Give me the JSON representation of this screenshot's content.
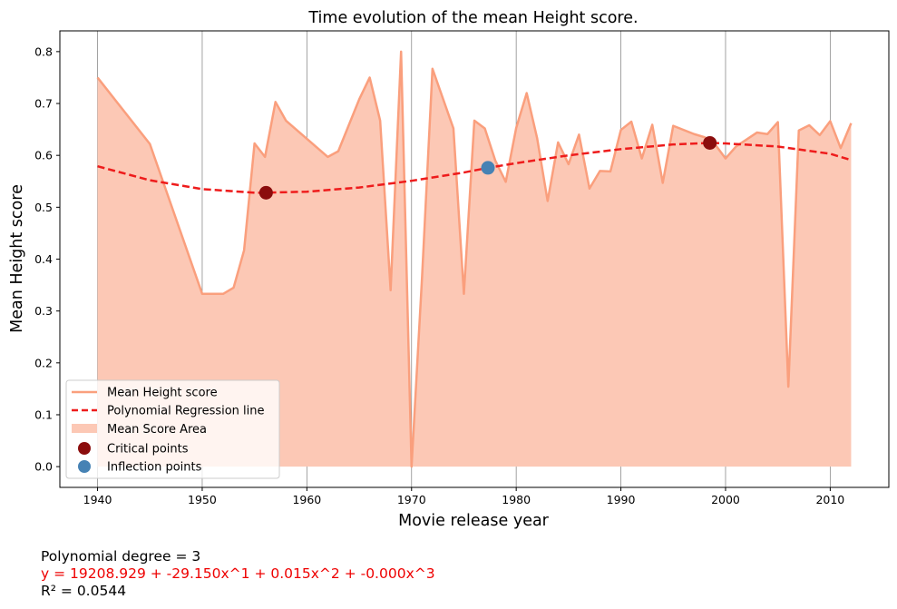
{
  "chart_data": {
    "type": "line",
    "title": "Time evolution of the mean Height score.",
    "xlabel": "Movie release year",
    "ylabel": "Mean Height score",
    "xlim": [
      1936.4,
      2015.6
    ],
    "ylim": [
      -0.04,
      0.84
    ],
    "xticks": [
      1940,
      1950,
      1960,
      1970,
      1980,
      1990,
      2000,
      2010
    ],
    "yticks": [
      0.0,
      0.1,
      0.2,
      0.3,
      0.4,
      0.5,
      0.6,
      0.7,
      0.8
    ],
    "xtick_labels": [
      "1940",
      "1950",
      "1960",
      "1970",
      "1980",
      "1990",
      "2000",
      "2010"
    ],
    "ytick_labels": [
      "0.0",
      "0.1",
      "0.2",
      "0.3",
      "0.4",
      "0.5",
      "0.6",
      "0.7",
      "0.8"
    ],
    "vertical_grid": true,
    "legend_position": "lower-left",
    "series": [
      {
        "name": "Mean Height score",
        "kind": "line",
        "color": "#fa9f7d",
        "x": [
          1940,
          1945,
          1950,
          1951,
          1952,
          1953,
          1954,
          1955,
          1956,
          1957,
          1958,
          1962,
          1963,
          1965,
          1966,
          1967,
          1968,
          1969,
          1970,
          1971,
          1972,
          1974,
          1975,
          1976,
          1977,
          1978,
          1979,
          1980,
          1981,
          1982,
          1983,
          1984,
          1985,
          1986,
          1987,
          1988,
          1989,
          1990,
          1991,
          1992,
          1993,
          1994,
          1995,
          1997,
          1998,
          1999,
          2000,
          2001,
          2003,
          2004,
          2005,
          2006,
          2007,
          2008,
          2009,
          2010,
          2011,
          2012
        ],
        "y": [
          0.75,
          0.622,
          0.333,
          0.333,
          0.333,
          0.345,
          0.417,
          0.623,
          0.597,
          0.703,
          0.667,
          0.597,
          0.608,
          0.708,
          0.75,
          0.667,
          0.34,
          0.8,
          0.0,
          0.364,
          0.767,
          0.652,
          0.333,
          0.667,
          0.652,
          0.59,
          0.549,
          0.653,
          0.72,
          0.633,
          0.512,
          0.625,
          0.583,
          0.64,
          0.536,
          0.57,
          0.569,
          0.649,
          0.665,
          0.594,
          0.659,
          0.547,
          0.657,
          0.641,
          0.635,
          0.621,
          0.594,
          0.617,
          0.644,
          0.641,
          0.664,
          0.154,
          0.648,
          0.658,
          0.639,
          0.666,
          0.614,
          0.662
        ]
      },
      {
        "name": "Polynomial Regression line",
        "kind": "dashed-line",
        "color": "#ee1c1c",
        "x": [
          1940,
          1945,
          1950,
          1955,
          1956,
          1960,
          1965,
          1970,
          1975,
          1977.3,
          1980,
          1985,
          1990,
          1995,
          1998.5,
          2000,
          2005,
          2010,
          2012
        ],
        "y": [
          0.579,
          0.552,
          0.535,
          0.528,
          0.528,
          0.53,
          0.538,
          0.551,
          0.567,
          0.576,
          0.585,
          0.6,
          0.612,
          0.621,
          0.624,
          0.623,
          0.617,
          0.603,
          0.591
        ]
      },
      {
        "name": "Mean Score Area",
        "kind": "area",
        "color": "#fcc8b5"
      },
      {
        "name": "Critical points",
        "kind": "scatter",
        "color": "#8b0d0d",
        "x": [
          1956.1,
          1998.5
        ],
        "y": [
          0.528,
          0.624
        ]
      },
      {
        "name": "Inflection points",
        "kind": "scatter",
        "color": "#4682b4",
        "x": [
          1977.3
        ],
        "y": [
          0.576
        ]
      }
    ]
  },
  "footer": {
    "degree_text": "Polynomial degree = 3",
    "equation_text": "y = 19208.929 + -29.150x^1 + 0.015x^2 + -0.000x^3",
    "r2_text": "R² = 0.0544",
    "equation_color": "#ee0000"
  }
}
